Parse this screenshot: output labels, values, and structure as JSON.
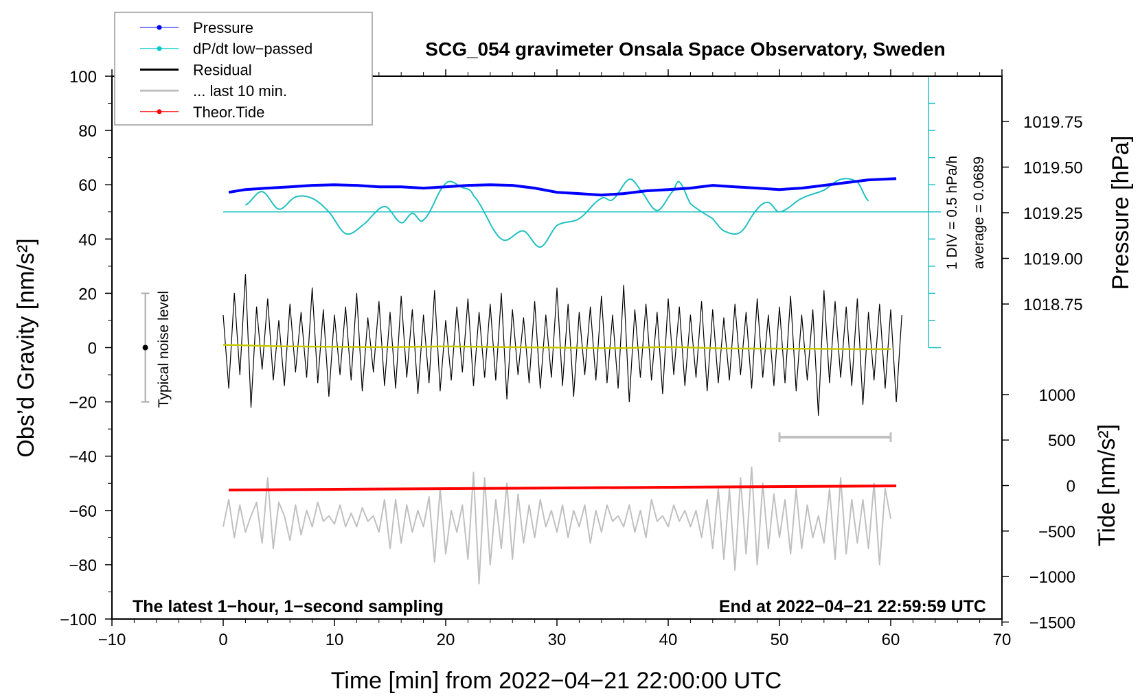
{
  "chart_data": {
    "type": "line",
    "title": "SCG_054 gravimeter Onsala Space Observatory, Sweden",
    "xlabel": "Time [min] from 2022−04−21 22:00:00 UTC",
    "ylabel": "Obs’d Gravity [nm/s²]",
    "ylabel_right_pressure": "Pressure [hPa]",
    "ylabel_right_tide": "Tide [nm/s²]",
    "xlim": [
      -10,
      70
    ],
    "ylim": [
      -100,
      100
    ],
    "pressure_lim_hint": [
      1018.75,
      1019.75
    ],
    "tide_lim": [
      -1500,
      1000
    ],
    "x_ticks": [
      "−10",
      "0",
      "10",
      "20",
      "30",
      "40",
      "50",
      "60",
      "70"
    ],
    "y_ticks": [
      "100",
      "80",
      "60",
      "40",
      "20",
      "0",
      "−20",
      "−40",
      "−60",
      "−80",
      "−100"
    ],
    "pressure_ticks": [
      "1019.75",
      "1019.50",
      "1019.25",
      "1019.00",
      "1018.75"
    ],
    "tide_ticks": [
      "1000",
      "500",
      "0",
      "−500",
      "−1000",
      "−1500"
    ],
    "annotations": {
      "bottom_left": "The latest 1−hour, 1−second sampling",
      "bottom_right": "End at 2022−04−21 22:59:59 UTC",
      "div": "1 DIV = 0.5 hPa/h",
      "average": "average = 0.0689",
      "noise": "Typical noise level"
    },
    "legend": {
      "placement": "top-left",
      "entries": [
        {
          "label": "Pressure",
          "color": "#0000ff",
          "marker": true
        },
        {
          "label": "dP/dt low−passed",
          "color": "#00c8c8",
          "marker": true
        },
        {
          "label": "Residual",
          "color": "#000000",
          "marker": false
        },
        {
          "label": "... last 10 min.",
          "color": "#c0c0c0",
          "marker": false
        },
        {
          "label": "Theor.Tide",
          "color": "#ff0000",
          "marker": true
        }
      ]
    },
    "colors": {
      "pressure": "#0000ff",
      "dpdt": "#20c0c0",
      "residual": "#000000",
      "smoothed": "#c8c800",
      "last10": "#c0c0c0",
      "tide": "#ff0000"
    },
    "series": {
      "pressure": {
        "x": [
          0.5,
          2,
          4,
          6,
          8,
          10,
          12,
          14,
          16,
          18,
          20,
          22,
          24,
          26,
          28,
          30,
          32,
          34,
          36,
          38,
          40,
          42,
          44,
          46,
          48,
          50,
          52,
          54,
          56,
          58,
          60.5
        ],
        "y_hPa": [
          1019.362,
          1019.377,
          1019.385,
          1019.392,
          1019.4,
          1019.403,
          1019.4,
          1019.392,
          1019.392,
          1019.385,
          1019.392,
          1019.4,
          1019.403,
          1019.4,
          1019.385,
          1019.362,
          1019.355,
          1019.347,
          1019.355,
          1019.37,
          1019.377,
          1019.385,
          1019.4,
          1019.392,
          1019.385,
          1019.377,
          1019.385,
          1019.4,
          1019.415,
          1019.43,
          1019.437
        ]
      },
      "dpdt": {
        "x": [
          2,
          3.5,
          5,
          6.5,
          8,
          9.5,
          11,
          12.5,
          14.5,
          16,
          17,
          18,
          20,
          21.5,
          22.5,
          25,
          27,
          28.5,
          30,
          32,
          34,
          35,
          36.5,
          37.5,
          39,
          40.5,
          41,
          42,
          44,
          45,
          46.5,
          48,
          49,
          50,
          52,
          54,
          55.5,
          57,
          58
        ],
        "y_hPa_per_h": [
          0.125,
          0.375,
          0.05,
          0.275,
          0.25,
          0,
          -0.4,
          -0.25,
          0.1,
          -0.2,
          -0.025,
          -0.15,
          0.525,
          0.45,
          0.3,
          -0.5,
          -0.35,
          -0.65,
          -0.25,
          -0.125,
          0.25,
          0.225,
          0.6,
          0.4,
          0.025,
          0.4,
          0.55,
          0.15,
          -0.125,
          -0.35,
          -0.375,
          0.05,
          0.175,
          0,
          0.25,
          0.4,
          0.6,
          0.55,
          0.2
        ]
      },
      "residual": {
        "x_step": 0.5,
        "y": [
          12,
          -15,
          20,
          -10,
          27,
          -22,
          15,
          -8,
          18,
          -12,
          10,
          -14,
          16,
          -9,
          13,
          -11,
          22,
          -13,
          14,
          -18,
          12,
          -10,
          15,
          -12,
          20,
          -16,
          11,
          -9,
          17,
          -14,
          13,
          -15,
          19,
          -11,
          14,
          -17,
          12,
          -13,
          21,
          -16,
          10,
          -12,
          15,
          -9,
          18,
          -14,
          13,
          -11,
          16,
          -12,
          20,
          -19,
          14,
          -10,
          11,
          -13,
          17,
          -15,
          12,
          -11,
          22,
          -14,
          16,
          -18,
          13,
          -10,
          15,
          -12,
          19,
          -13,
          12,
          -15,
          23,
          -20,
          14,
          -11,
          16,
          -12,
          13,
          -17,
          18,
          -10,
          15,
          -14,
          12,
          -11,
          17,
          -16,
          14,
          -13,
          11,
          -12,
          16,
          -10,
          13,
          -15,
          18,
          -11,
          12,
          -14,
          15,
          -13,
          19,
          -16,
          12,
          -12,
          14,
          -25,
          21,
          -13,
          17,
          -11,
          15,
          -14,
          18,
          -21,
          13,
          -12,
          16,
          -15,
          14,
          -20,
          12
        ]
      },
      "residual_smoothed": {
        "x": [
          0,
          5,
          10,
          15,
          20,
          25,
          30,
          35,
          40,
          45,
          50,
          55,
          60
        ],
        "y": [
          1,
          0.5,
          0.3,
          0.2,
          0.4,
          0.2,
          0,
          -0.2,
          0.2,
          -0.3,
          -0.4,
          -0.5,
          -0.6
        ]
      },
      "last10": {
        "x_step": 0.5,
        "y": [
          -66,
          -56,
          -70,
          -58,
          -68,
          -62,
          -57,
          -72,
          -48,
          -74,
          -57,
          -62,
          -71,
          -58,
          -69,
          -60,
          -66,
          -57,
          -64,
          -62,
          -65,
          -58,
          -66,
          -61,
          -66,
          -59,
          -64,
          -62,
          -68,
          -56,
          -74,
          -56,
          -72,
          -58,
          -68,
          -60,
          -66,
          -55,
          -79,
          -52,
          -76,
          -60,
          -68,
          -58,
          -78,
          -46,
          -87,
          -48,
          -80,
          -56,
          -74,
          -50,
          -78,
          -54,
          -72,
          -58,
          -70,
          -56,
          -66,
          -60,
          -68,
          -58,
          -70,
          -60,
          -66,
          -58,
          -72,
          -60,
          -68,
          -58,
          -64,
          -62,
          -66,
          -58,
          -68,
          -60,
          -70,
          -56,
          -64,
          -62,
          -66,
          -58,
          -64,
          -60,
          -66,
          -60,
          -70,
          -56,
          -74,
          -52,
          -78,
          -52,
          -82,
          -48,
          -76,
          -44,
          -80,
          -50,
          -74,
          -54,
          -70,
          -56,
          -76,
          -52,
          -74,
          -58,
          -70,
          -62,
          -72,
          -52,
          -78,
          -48,
          -76,
          -56,
          -72,
          -56,
          -74,
          -50,
          -80,
          -52,
          -63
        ]
      },
      "tide": {
        "x": [
          0.5,
          60.5
        ],
        "y_nm_s2": [
          -49,
          -4
        ]
      }
    },
    "noise_bar": {
      "x": -7,
      "range": [
        -20,
        20
      ]
    },
    "last10_scale_bar": {
      "x_range": [
        50,
        60
      ],
      "y": -33
    }
  }
}
